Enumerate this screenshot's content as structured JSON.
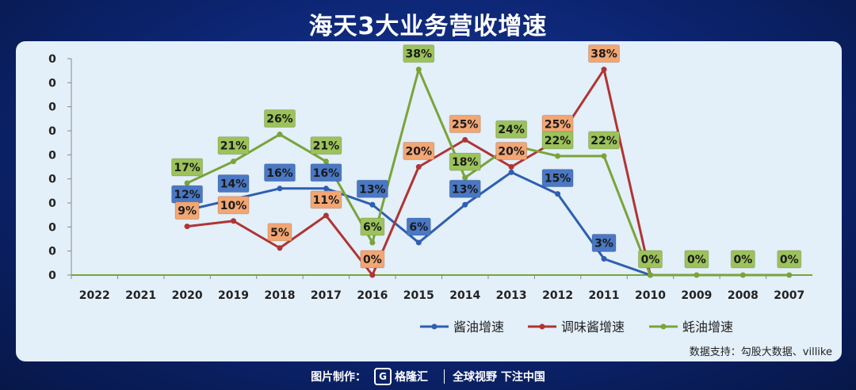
{
  "title": "海天3大业务营收增速",
  "source": "数据支持：勾股大数据、villike",
  "footer": {
    "made_by": "图片制作：",
    "brand": "格隆汇",
    "slogan": "全球视野 下注中国"
  },
  "colors": {
    "soy": "#2e5fb0",
    "seasoning": "#b03434",
    "oyster": "#7aa43a",
    "soy_label_bg": "#4a78c4",
    "seasoning_label_bg": "#f2a673",
    "oyster_label_bg": "#9cc25a"
  },
  "chart_data": {
    "type": "line",
    "title": "海天3大业务营收增速",
    "categories": [
      "2022",
      "2021",
      "2020",
      "2019",
      "2018",
      "2017",
      "2016",
      "2015",
      "2014",
      "2013",
      "2012",
      "2011",
      "2010",
      "2009",
      "2008",
      "2007"
    ],
    "y_tick_labels": [
      "0",
      "0",
      "0",
      "0",
      "0",
      "0",
      "0",
      "0",
      "0",
      "0"
    ],
    "ylim": [
      0,
      40
    ],
    "legend_position": "bottom-right",
    "series": [
      {
        "name": "酱油增速",
        "color_key": "soy",
        "values": [
          null,
          null,
          12,
          14,
          16,
          16,
          13,
          6,
          13,
          19,
          15,
          3,
          0,
          null,
          null,
          null
        ],
        "labels": [
          null,
          null,
          "12%",
          "14%",
          "16%",
          "16%",
          "13%",
          "6%",
          "13%",
          null,
          "15%",
          "3%",
          null,
          null,
          null,
          null
        ]
      },
      {
        "name": "调味酱增速",
        "color_key": "seasoning",
        "values": [
          null,
          null,
          9,
          10,
          5,
          11,
          0,
          20,
          25,
          20,
          25,
          38,
          0,
          null,
          null,
          null
        ],
        "labels": [
          null,
          null,
          "9%",
          "10%",
          "5%",
          "11%",
          "0%",
          "20%",
          "25%",
          "20%",
          "25%",
          "38%",
          null,
          null,
          null,
          null
        ]
      },
      {
        "name": "蚝油增速",
        "color_key": "oyster",
        "values": [
          null,
          null,
          17,
          21,
          26,
          21,
          6,
          38,
          18,
          24,
          22,
          22,
          0,
          0,
          0,
          0
        ],
        "labels": [
          null,
          null,
          "17%",
          "21%",
          "26%",
          "21%",
          "6%",
          "38%",
          "18%",
          "24%",
          "22%",
          "22%",
          "0%",
          "0%",
          "0%",
          "0%"
        ]
      }
    ]
  }
}
